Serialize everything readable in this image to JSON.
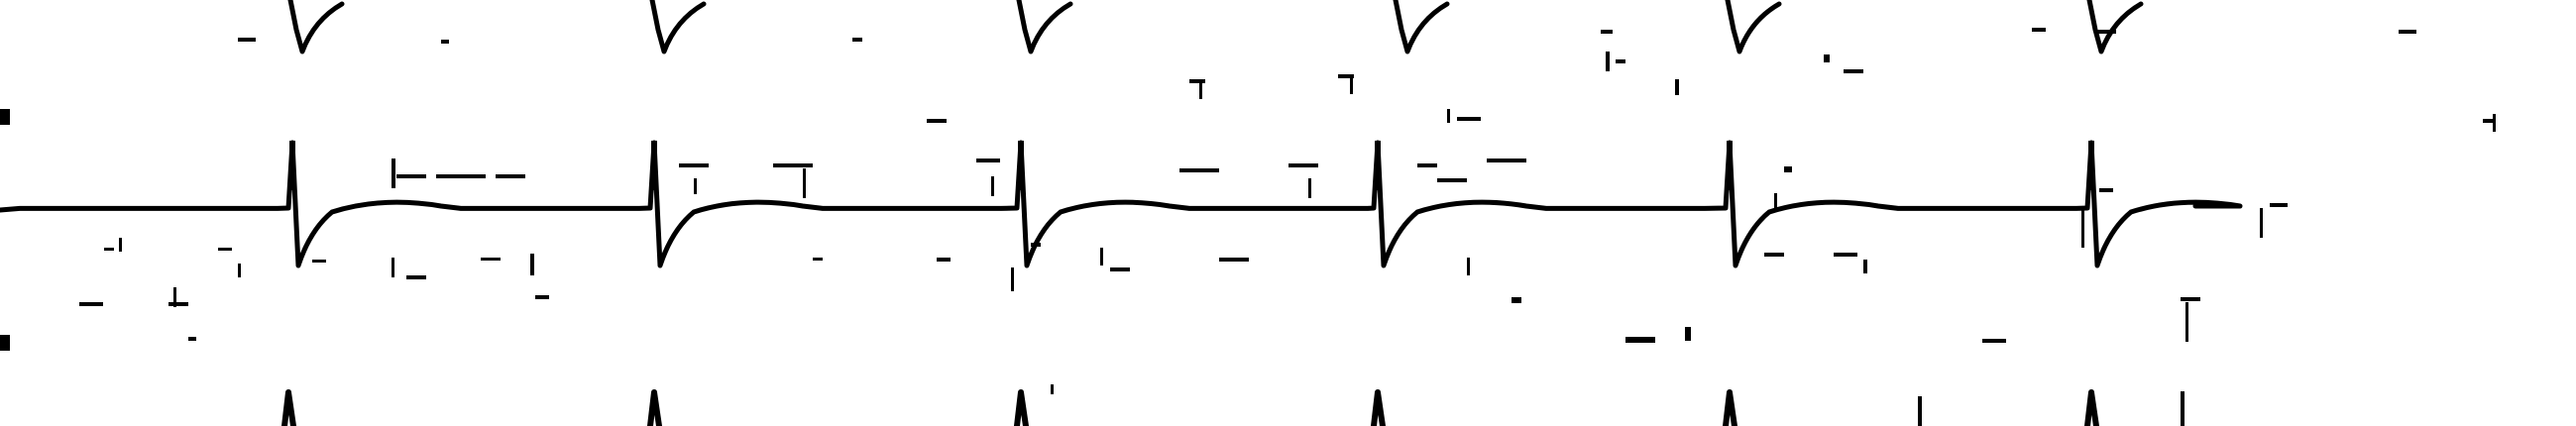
{
  "image": {
    "background_color": "#ffffff",
    "ink_color": "#000000",
    "description_tag": "ecg-strip-scan"
  },
  "strip": {
    "lead_count": 3,
    "beats_per_lead": 6,
    "top_lead_beats": 6,
    "middle_lead_beats": 6,
    "bottom_lead_beats": 6
  }
}
